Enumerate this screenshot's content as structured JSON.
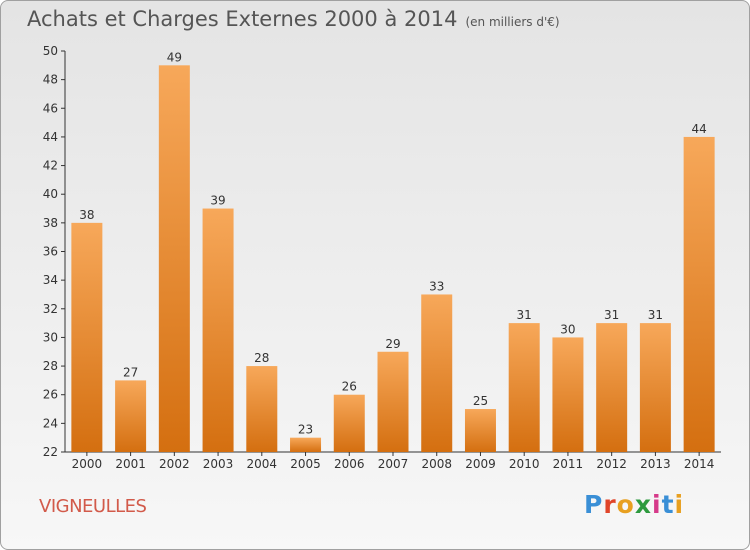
{
  "title": "Achats et Charges Externes 2000 à 2014",
  "unit": "(en milliers d'€)",
  "location": "VIGNEULLES",
  "logo": {
    "letters": [
      "P",
      "r",
      "o",
      "x",
      "i",
      "t",
      "i"
    ],
    "colors": [
      "#3a8fd6",
      "#e0452a",
      "#e8a020",
      "#2d9a3e",
      "#d63a8a",
      "#3a8fd6",
      "#e8a020"
    ]
  },
  "colors": {
    "bar": "#f28a1e",
    "bar_light": "#f7a85a",
    "bar_dark": "#d46f10",
    "title_text": "#555555",
    "location_text": "#d25a4a"
  },
  "chart_data": {
    "type": "bar",
    "categories": [
      "2000",
      "2001",
      "2002",
      "2003",
      "2004",
      "2005",
      "2006",
      "2007",
      "2008",
      "2009",
      "2010",
      "2011",
      "2012",
      "2013",
      "2014"
    ],
    "values": [
      38,
      27,
      49,
      39,
      28,
      23,
      26,
      29,
      33,
      25,
      31,
      30,
      31,
      31,
      44
    ],
    "ylim": [
      22,
      50
    ],
    "yticks": [
      22,
      24,
      26,
      28,
      30,
      32,
      34,
      36,
      38,
      40,
      42,
      44,
      46,
      48,
      50
    ],
    "grid": false,
    "data_labels": true
  }
}
